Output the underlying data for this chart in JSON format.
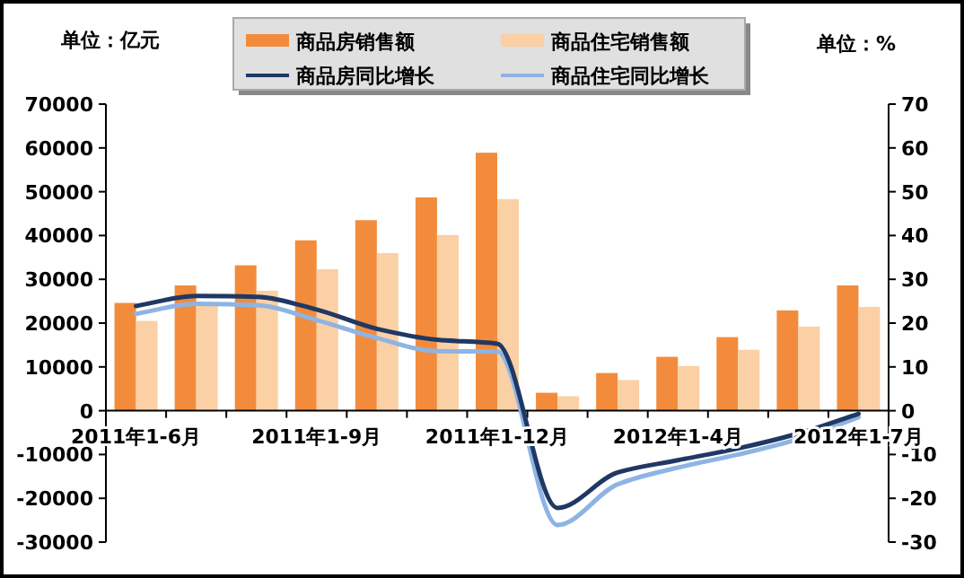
{
  "chart_data": {
    "type": "bar",
    "ylabel": "单位：亿元",
    "y2label": "单位：%",
    "categories": [
      "2011年1-6月",
      null,
      null,
      "2011年1-9月",
      null,
      null,
      "2011年1-12月",
      null,
      null,
      "2012年1-4月",
      null,
      null,
      "2012年1-7月"
    ],
    "series": [
      {
        "name": "商品房销售额",
        "color": "#f28c3c",
        "values": [
          24600,
          28600,
          33200,
          38900,
          43500,
          48700,
          58900,
          4100,
          8600,
          12300,
          16800,
          22900,
          28600
        ]
      },
      {
        "name": "商品住宅销售额",
        "color": "#fbd0a4",
        "values": [
          20500,
          24500,
          27400,
          32300,
          36000,
          40100,
          48300,
          3300,
          7000,
          10200,
          13900,
          19200,
          23700
        ]
      },
      {
        "name": "商品房同比增长",
        "type": "line",
        "axis": "y2",
        "color": "#1f3864",
        "values": [
          23.9,
          26.2,
          26.0,
          23.1,
          18.7,
          16.2,
          15.3,
          -22.2,
          -14.1,
          -11.3,
          -8.6,
          -5.2,
          -0.7
        ]
      },
      {
        "name": "商品住宅同比增长",
        "type": "line",
        "axis": "y2",
        "color": "#8eb4e3",
        "values": [
          22.1,
          24.4,
          24.1,
          20.7,
          16.6,
          13.6,
          13.5,
          -26.1,
          -16.8,
          -13.0,
          -10.0,
          -6.5,
          -1.5
        ]
      }
    ],
    "ylim": [
      -30000,
      70000
    ],
    "yticks": [
      -30000,
      -20000,
      -10000,
      0,
      10000,
      20000,
      30000,
      40000,
      50000,
      60000,
      70000
    ],
    "y2lim": [
      -30,
      70
    ],
    "y2ticks": [
      -30,
      -20,
      -10,
      0,
      10,
      20,
      30,
      40,
      50,
      60,
      70
    ],
    "legend": "top",
    "grid": false
  }
}
